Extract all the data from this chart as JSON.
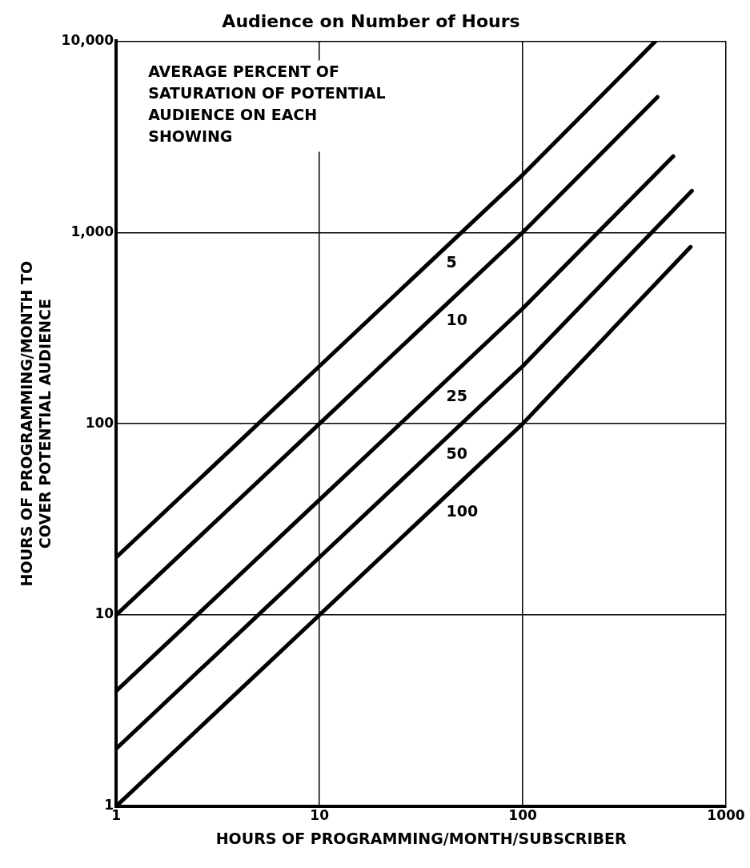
{
  "chart_data": {
    "type": "line",
    "title": "Audience on Number of Hours",
    "xlabel": "HOURS OF PROGRAMMING/MONTH/SUBSCRIBER",
    "ylabel": "HOURS OF PROGRAMMING/MONTH TO\nCOVER POTENTIAL AUDIENCE",
    "log": "xy",
    "grid": true,
    "legend": false,
    "marker": "none",
    "line_style": "solid",
    "xlim": [
      1,
      1000
    ],
    "xticks": [
      1,
      10,
      100,
      1000
    ],
    "ylim": [
      1,
      10000
    ],
    "yticks": [
      1,
      10,
      100,
      {
        "value": 1000,
        "label": "1,000"
      },
      {
        "value": 10000,
        "label": "10,000"
      }
    ],
    "series": [
      {
        "name": "5",
        "color": "#000000",
        "x": [
          1,
          10,
          100,
          450
        ],
        "values": [
          20,
          200,
          2000,
          10000
        ]
      },
      {
        "name": "10",
        "color": "#000000",
        "x": [
          1,
          10,
          100,
          460
        ],
        "values": [
          10,
          100,
          1000,
          5100
        ]
      },
      {
        "name": "25",
        "color": "#000000",
        "x": [
          1,
          10,
          100,
          550
        ],
        "values": [
          4,
          40,
          400,
          2500
        ]
      },
      {
        "name": "50",
        "color": "#000000",
        "x": [
          1,
          10,
          100,
          680
        ],
        "values": [
          2,
          20,
          200,
          1650
        ]
      },
      {
        "name": "100",
        "color": "#000000",
        "x": [
          1,
          10,
          100,
          670
        ],
        "values": [
          1,
          10,
          100,
          840
        ]
      }
    ],
    "annotations": [
      "AVERAGE PERCENT OF\nSATURATION OF POTENTIAL\nAUDIENCE ON EACH\nSHOWING"
    ]
  }
}
